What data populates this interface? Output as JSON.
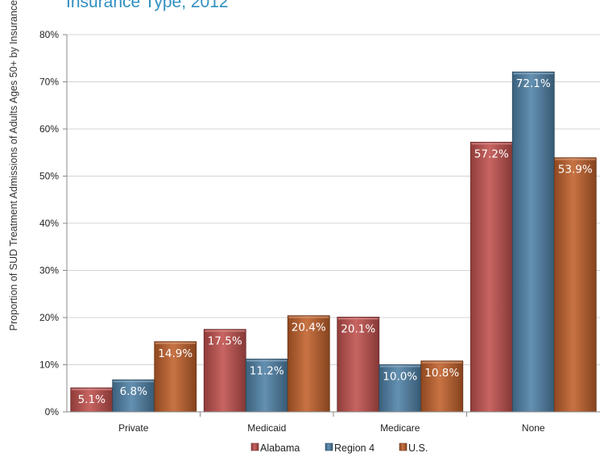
{
  "chart_data": {
    "type": "bar",
    "title": "Insurance Type, 2012",
    "ylabel": "Proportion of SUD Treatment Admissions of Adults Ages 50+ by Insurance Type",
    "xlabel": "",
    "categories": [
      "Private",
      "Medicaid",
      "Medicare",
      "None"
    ],
    "y_ticks": [
      "0%",
      "10%",
      "20%",
      "30%",
      "40%",
      "50%",
      "60%",
      "70%",
      "80%"
    ],
    "ylim": [
      0,
      80
    ],
    "grid": true,
    "legend_position": "bottom",
    "series": [
      {
        "name": "Alabama",
        "color": "#c0504d",
        "values": [
          5.1,
          17.5,
          20.1,
          57.2
        ],
        "labels": [
          "5.1%",
          "17.5%",
          "20.1%",
          "57.2%"
        ]
      },
      {
        "name": "Region 4",
        "color": "#4f81a6",
        "values": [
          6.8,
          11.2,
          10.0,
          72.1
        ],
        "labels": [
          "6.8%",
          "11.2%",
          "10.0%",
          "72.1%"
        ]
      },
      {
        "name": "U.S.",
        "color": "#c0602a",
        "values": [
          14.9,
          20.4,
          10.8,
          53.9
        ],
        "labels": [
          "14.9%",
          "20.4%",
          "10.8%",
          "53.9%"
        ]
      }
    ]
  }
}
